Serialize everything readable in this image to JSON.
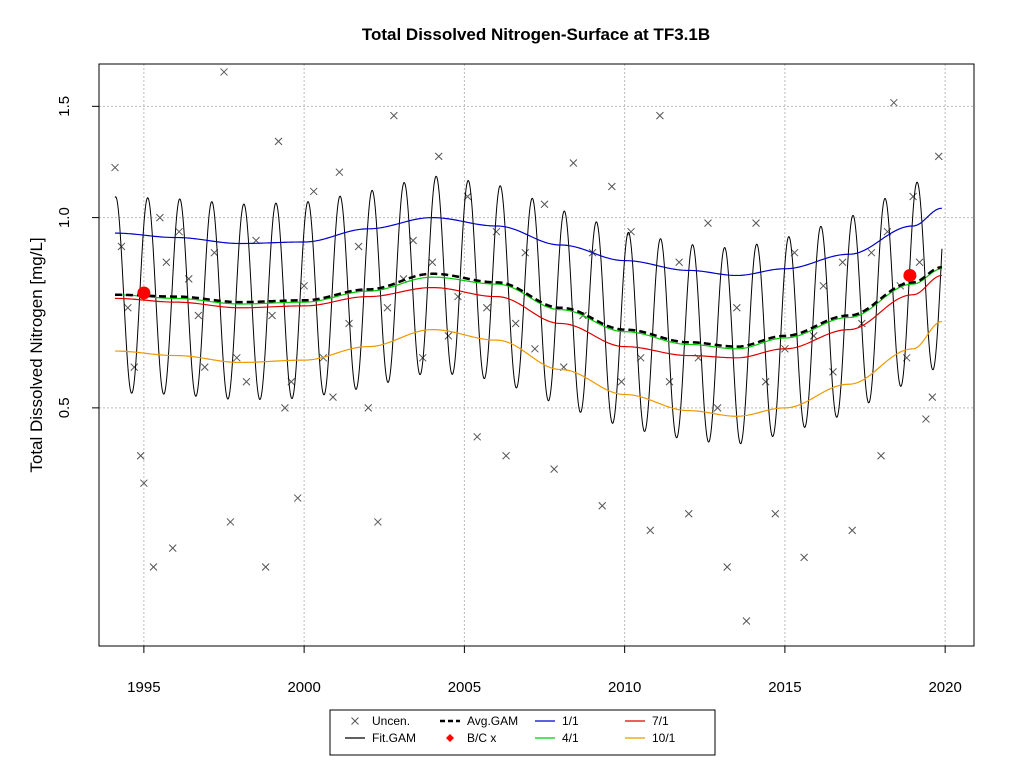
{
  "chart_data": {
    "type": "scatter",
    "title": "Total Dissolved Nitrogen-Surface at TF3.1B",
    "xlabel": "",
    "ylabel": "Total Dissolved Nitrogen [mg/L]",
    "y_scale": "log",
    "xlim": [
      1993.6,
      2020.9
    ],
    "ylim": [
      0.21,
      1.75
    ],
    "x_ticks": [
      1995,
      2000,
      2005,
      2010,
      2015,
      2020
    ],
    "x_tick_labels": [
      "1995",
      "2000",
      "2005",
      "2010",
      "2015",
      "2020"
    ],
    "y_ticks": [
      0.5,
      1.0,
      1.5
    ],
    "y_tick_labels": [
      "0.5",
      "1.0",
      "1.5"
    ],
    "grid": true,
    "legend_position": "bottom",
    "legend": [
      "Uncen.",
      "Fit.GAM",
      "Avg.GAM",
      "B/C x",
      "1/1",
      "4/1",
      "7/1",
      "10/1"
    ],
    "colors": {
      "uncen": "#555555",
      "fit_gam": "#000000",
      "avg_gam": "#000000",
      "bc": "#ff0000",
      "d1_1": "#0000cc",
      "d4_1": "#00cc00",
      "d7_1": "#dd0000",
      "d10_1": "#ee9900",
      "grid": "#bbbbbb"
    },
    "bc_points": [
      {
        "x": 1995.0,
        "y": 0.76
      },
      {
        "x": 2018.9,
        "y": 0.81
      }
    ],
    "series": [
      {
        "name": "Avg.GAM",
        "style": "dashed",
        "x": [
          1994.1,
          1996,
          1998,
          2000,
          2002,
          2004,
          2006,
          2008,
          2010,
          2012,
          2013.5,
          2015,
          2017,
          2019,
          2019.9
        ],
        "y": [
          0.755,
          0.75,
          0.735,
          0.74,
          0.77,
          0.815,
          0.79,
          0.72,
          0.665,
          0.635,
          0.625,
          0.65,
          0.7,
          0.79,
          0.835
        ]
      },
      {
        "name": "1/1",
        "style": "solid",
        "x": [
          1994.1,
          1996,
          1998,
          2000,
          2002,
          2004,
          2006,
          2008,
          2010,
          2012,
          2013.5,
          2015,
          2017,
          2019,
          2019.9
        ],
        "y": [
          0.945,
          0.93,
          0.91,
          0.915,
          0.96,
          1.0,
          0.97,
          0.905,
          0.855,
          0.825,
          0.81,
          0.83,
          0.875,
          0.97,
          1.035
        ]
      },
      {
        "name": "4/1",
        "style": "solid",
        "x": [
          1994.1,
          1996,
          1998,
          2000,
          2002,
          2004,
          2006,
          2008,
          2010,
          2012,
          2013.5,
          2015,
          2017,
          2019,
          2019.9
        ],
        "y": [
          0.755,
          0.745,
          0.73,
          0.735,
          0.765,
          0.805,
          0.785,
          0.715,
          0.66,
          0.63,
          0.62,
          0.645,
          0.695,
          0.785,
          0.83
        ]
      },
      {
        "name": "7/1",
        "style": "solid",
        "x": [
          1994.1,
          1996,
          1998,
          2000,
          2002,
          2004,
          2006,
          2008,
          2010,
          2012,
          2013.5,
          2015,
          2017,
          2019,
          2019.9
        ],
        "y": [
          0.745,
          0.735,
          0.72,
          0.725,
          0.75,
          0.775,
          0.75,
          0.68,
          0.625,
          0.605,
          0.6,
          0.62,
          0.665,
          0.755,
          0.81
        ]
      },
      {
        "name": "10/1",
        "style": "solid",
        "x": [
          1994.1,
          1996,
          1998,
          2000,
          2002,
          2004,
          2006,
          2008,
          2010,
          2012,
          2013.5,
          2015,
          2017,
          2019,
          2019.9
        ],
        "y": [
          0.615,
          0.605,
          0.59,
          0.595,
          0.625,
          0.665,
          0.64,
          0.575,
          0.525,
          0.495,
          0.485,
          0.5,
          0.545,
          0.62,
          0.685
        ]
      },
      {
        "name": "Fit.GAM",
        "style": "seasonal",
        "amplitude_log10": 0.155,
        "peak_phase": 0.12
      },
      {
        "name": "Uncen.",
        "style": "points",
        "x": [
          1994.1,
          1994.3,
          1994.5,
          1994.7,
          1994.9,
          1995.0,
          1995.3,
          1995.5,
          1995.7,
          1995.9,
          1996.1,
          1996.4,
          1996.7,
          1996.9,
          1997.2,
          1997.5,
          1997.7,
          1997.9,
          1998.2,
          1998.5,
          1998.8,
          1999.0,
          1999.2,
          1999.4,
          1999.6,
          1999.8,
          2000.0,
          2000.3,
          2000.6,
          2000.9,
          2001.1,
          2001.4,
          2001.7,
          2002.0,
          2002.3,
          2002.6,
          2002.8,
          2003.1,
          2003.4,
          2003.7,
          2004.0,
          2004.2,
          2004.5,
          2004.8,
          2005.1,
          2005.4,
          2005.7,
          2006.0,
          2006.3,
          2006.6,
          2006.9,
          2007.2,
          2007.5,
          2007.8,
          2008.1,
          2008.4,
          2008.7,
          2009.0,
          2009.3,
          2009.6,
          2009.9,
          2010.2,
          2010.5,
          2010.8,
          2011.1,
          2011.4,
          2011.7,
          2012.0,
          2012.3,
          2012.6,
          2012.9,
          2013.2,
          2013.5,
          2013.8,
          2014.1,
          2014.4,
          2014.7,
          2015.0,
          2015.3,
          2015.6,
          2015.9,
          2016.2,
          2016.5,
          2016.8,
          2017.1,
          2017.4,
          2017.7,
          2018.0,
          2018.2,
          2018.4,
          2018.6,
          2018.8,
          2019.0,
          2019.2,
          2019.4,
          2019.6,
          2019.8
        ],
        "y": [
          1.2,
          0.9,
          0.72,
          0.58,
          0.42,
          0.38,
          0.28,
          1.0,
          0.85,
          0.3,
          0.95,
          0.8,
          0.7,
          0.58,
          0.88,
          1.7,
          0.33,
          0.6,
          0.55,
          0.92,
          0.28,
          0.7,
          1.32,
          0.5,
          0.55,
          0.36,
          0.78,
          1.1,
          0.6,
          0.52,
          1.18,
          0.68,
          0.9,
          0.5,
          0.33,
          0.72,
          1.45,
          0.8,
          0.92,
          0.6,
          0.85,
          1.25,
          0.65,
          0.75,
          1.08,
          0.45,
          0.72,
          0.95,
          0.42,
          0.68,
          0.88,
          0.62,
          1.05,
          0.4,
          0.58,
          1.22,
          0.7,
          0.88,
          0.35,
          1.12,
          0.55,
          0.95,
          0.6,
          0.32,
          1.45,
          0.55,
          0.85,
          0.34,
          0.6,
          0.98,
          0.5,
          0.28,
          0.72,
          0.23,
          0.98,
          0.55,
          0.34,
          0.62,
          0.88,
          0.29,
          0.65,
          0.78,
          0.57,
          0.85,
          0.32,
          0.68,
          0.88,
          0.42,
          0.95,
          1.52,
          0.78,
          0.6,
          1.08,
          0.85,
          0.48,
          0.52,
          1.25
        ]
      }
    ]
  }
}
